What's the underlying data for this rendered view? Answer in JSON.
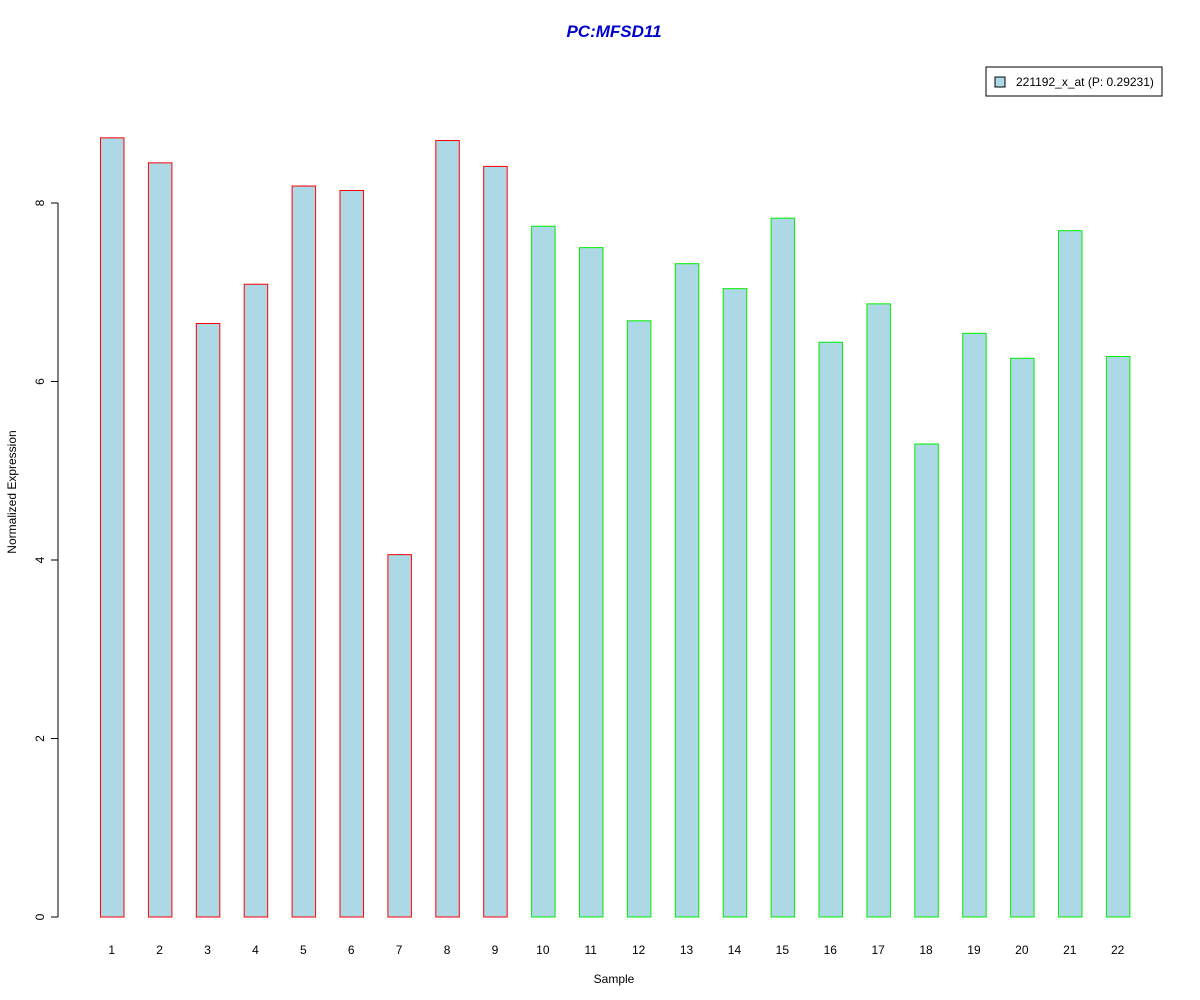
{
  "chart_data": {
    "type": "bar",
    "title": "PC:MFSD11",
    "xlabel": "Sample",
    "ylabel": "Normalized Expression",
    "categories": [
      "1",
      "2",
      "3",
      "4",
      "5",
      "6",
      "7",
      "8",
      "9",
      "10",
      "11",
      "12",
      "13",
      "14",
      "15",
      "16",
      "17",
      "18",
      "19",
      "20",
      "21",
      "22"
    ],
    "values": [
      8.73,
      8.45,
      6.65,
      7.09,
      8.19,
      8.14,
      4.06,
      8.7,
      8.41,
      7.74,
      7.5,
      6.68,
      7.32,
      7.04,
      7.83,
      6.44,
      6.87,
      5.3,
      6.54,
      6.26,
      7.69,
      6.28
    ],
    "groups": [
      1,
      1,
      1,
      1,
      1,
      1,
      1,
      1,
      1,
      2,
      2,
      2,
      2,
      2,
      2,
      2,
      2,
      2,
      2,
      2,
      2,
      2
    ],
    "ylim": [
      0,
      8.8
    ],
    "yticks": [
      0,
      2,
      4,
      6,
      8
    ],
    "grid": false,
    "legend": {
      "placement": "top-right",
      "entries": [
        "221192_x_at (P: 0.29231)"
      ]
    },
    "colors": {
      "title": "#0000cc",
      "bar_fill": "#add8e6",
      "group1_border": "#ff0000",
      "group2_border": "#00ee00"
    }
  }
}
